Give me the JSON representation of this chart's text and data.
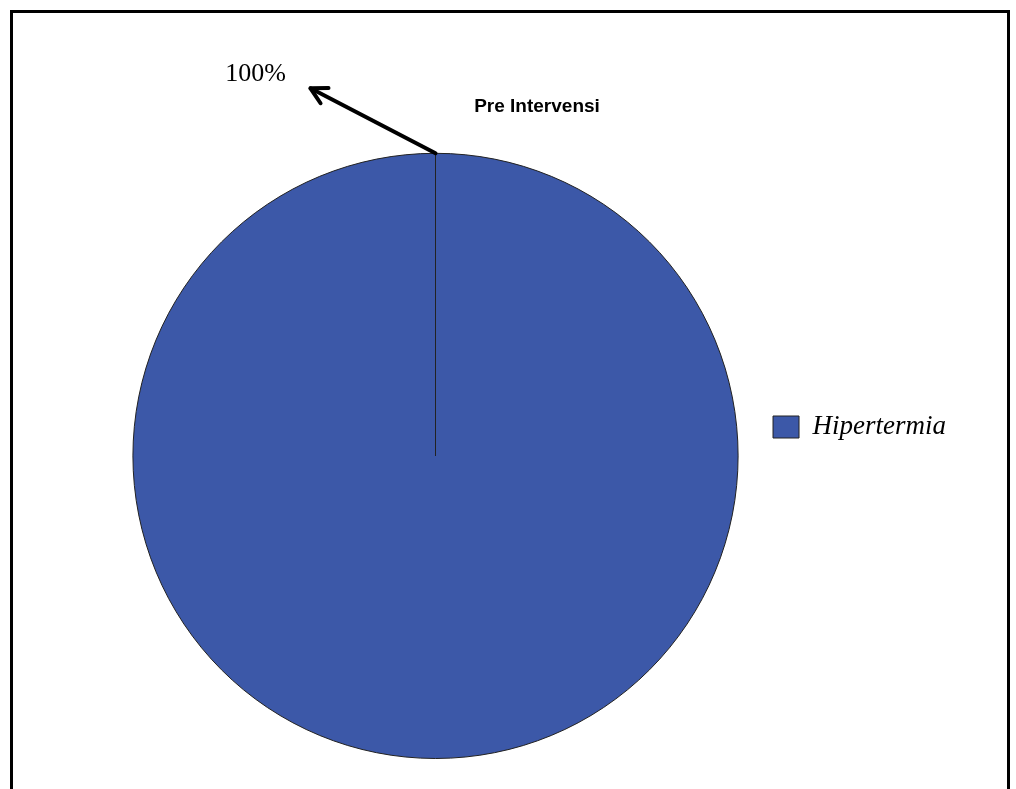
{
  "chart_data": {
    "type": "pie",
    "title": "Pre Intervensi",
    "categories": [
      "Hipertermia"
    ],
    "values": [
      100
    ],
    "colors": [
      "#3c58a8"
    ],
    "legend": "right",
    "value_labels": [
      "100%"
    ]
  }
}
